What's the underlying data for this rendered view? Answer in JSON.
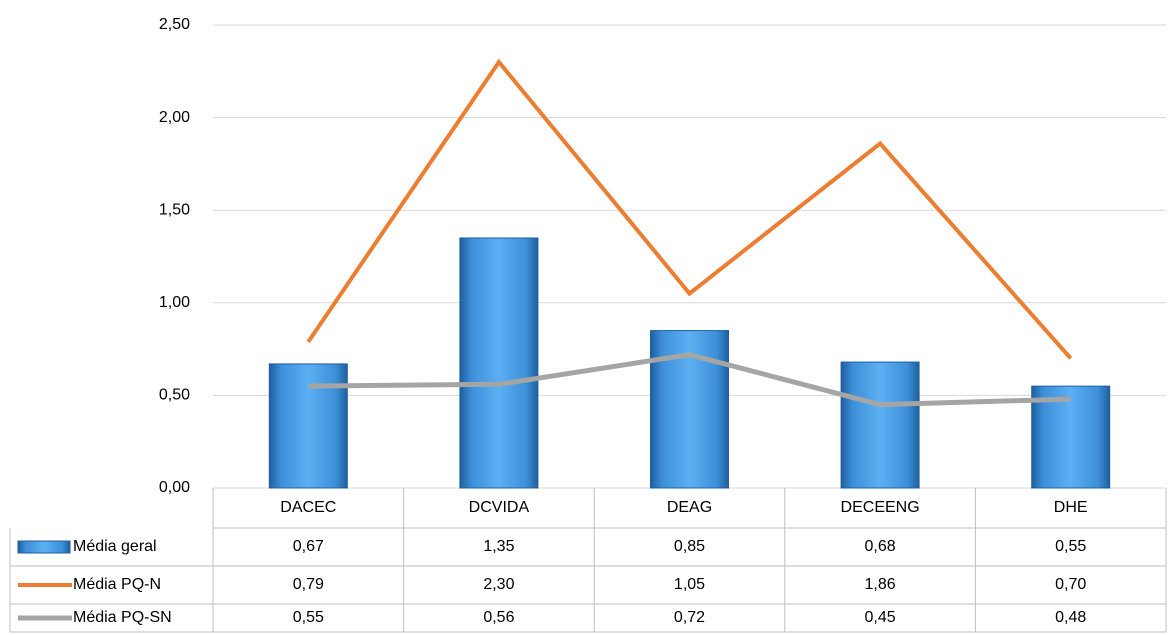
{
  "chart_data": {
    "type": "bar",
    "categories": [
      "DACEC",
      "DCVIDA",
      "DEAG",
      "DECEENG",
      "DHE"
    ],
    "series": [
      {
        "name": "Média geral",
        "type": "bar",
        "color": "#4a9be0",
        "values": [
          0.67,
          1.35,
          0.85,
          0.68,
          0.55
        ],
        "value_labels": [
          "0,67",
          "1,35",
          "0,85",
          "0,68",
          "0,55"
        ]
      },
      {
        "name": "Média PQ-N",
        "type": "line",
        "color": "#ed7d31",
        "values": [
          0.79,
          2.3,
          1.05,
          1.86,
          0.7
        ],
        "value_labels": [
          "0,79",
          "2,30",
          "1,05",
          "1,86",
          "0,70"
        ]
      },
      {
        "name": "Média PQ-SN",
        "type": "line",
        "color": "#a5a5a5",
        "values": [
          0.55,
          0.56,
          0.72,
          0.45,
          0.48
        ],
        "value_labels": [
          "0,55",
          "0,56",
          "0,72",
          "0,45",
          "0,48"
        ]
      }
    ],
    "ylim": [
      0,
      2.5
    ],
    "yticks": [
      {
        "value": 0,
        "label": "0,00"
      },
      {
        "value": 0.5,
        "label": "0,50"
      },
      {
        "value": 1,
        "label": "1,00"
      },
      {
        "value": 1.5,
        "label": "1,50"
      },
      {
        "value": 2,
        "label": "2,00"
      },
      {
        "value": 2.5,
        "label": "2,50"
      }
    ],
    "grid": true
  }
}
